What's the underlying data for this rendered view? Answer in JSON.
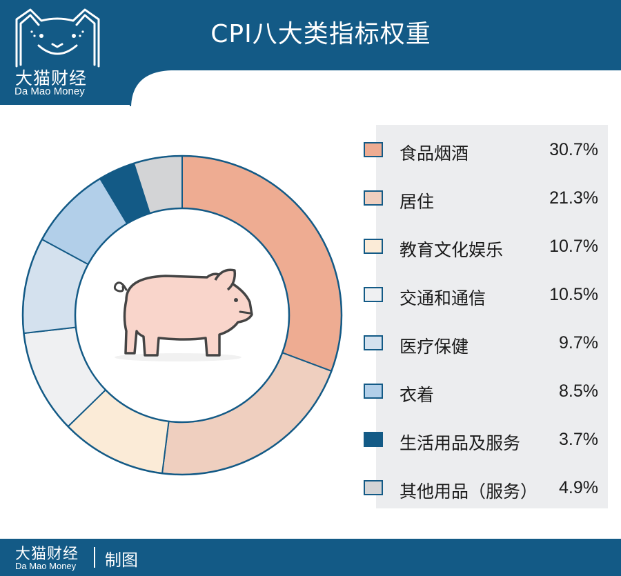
{
  "header": {
    "title": "CPI八大类指标权重"
  },
  "logo": {
    "name_cn": "大猫财经",
    "name_en": "Da Mao Money"
  },
  "footer": {
    "name_cn": "大猫财经",
    "name_en": "Da Mao Money",
    "maker": "制图"
  },
  "colors": {
    "brand": "#135a86",
    "ring_border": "#135a86",
    "legend_bg": "#ecedef"
  },
  "icons": {
    "center": "pig-icon",
    "logo": "cat-face-icon"
  },
  "chart_data": {
    "type": "pie",
    "style": "donut",
    "title": "CPI八大类指标权重",
    "legend_position": "right",
    "categories": [
      "食品烟酒",
      "居住",
      "教育文化娱乐",
      "交通和通信",
      "医疗保健",
      "衣着",
      "生活用品及服务",
      "其他用品（服务）"
    ],
    "value_labels": [
      "30.7%",
      "21.3%",
      "10.7%",
      "10.5%",
      "9.7%",
      "8.5%",
      "3.7%",
      "4.9%"
    ],
    "values": [
      30.7,
      21.3,
      10.7,
      10.5,
      9.7,
      8.5,
      3.7,
      4.9
    ],
    "colors": [
      "#eeac92",
      "#efcfbf",
      "#fbebd7",
      "#eff0f2",
      "#d4e1ee",
      "#b2cfe9",
      "#135a86",
      "#d3d4d6"
    ]
  }
}
